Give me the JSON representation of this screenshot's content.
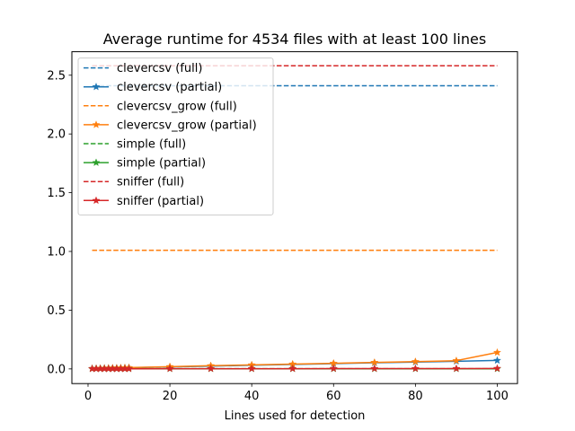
{
  "chart_data": {
    "type": "line",
    "title": "Average runtime for 4534 files with at least 100 lines",
    "xlabel": "Lines used for detection",
    "ylabel": "",
    "xlim": [
      -3.95,
      104.95
    ],
    "ylim": [
      -0.125,
      2.7
    ],
    "x_ticks": [
      0,
      20,
      40,
      60,
      80,
      100
    ],
    "y_ticks": [
      0.0,
      0.5,
      1.0,
      1.5,
      2.0,
      2.5
    ],
    "x_tick_labels": [
      "0",
      "20",
      "40",
      "60",
      "80",
      "100"
    ],
    "y_tick_labels": [
      "0.0",
      "0.5",
      "1.0",
      "1.5",
      "2.0",
      "2.5"
    ],
    "grid": false,
    "legend_position": "upper-left",
    "x": [
      1,
      2,
      3,
      4,
      5,
      6,
      7,
      8,
      9,
      10,
      20,
      30,
      40,
      50,
      60,
      70,
      80,
      90,
      100
    ],
    "series": [
      {
        "name": "clevercsv (full)",
        "color": "#1f77b4",
        "style": "dashed",
        "marker": "none",
        "values": [
          2.41,
          2.41,
          2.41,
          2.41,
          2.41,
          2.41,
          2.41,
          2.41,
          2.41,
          2.41,
          2.41,
          2.41,
          2.41,
          2.41,
          2.41,
          2.41,
          2.41,
          2.41,
          2.41
        ]
      },
      {
        "name": "clevercsv (partial)",
        "color": "#1f77b4",
        "style": "solid",
        "marker": "star",
        "values": [
          0.003,
          0.004,
          0.005,
          0.006,
          0.006,
          0.007,
          0.008,
          0.008,
          0.009,
          0.01,
          0.017,
          0.024,
          0.031,
          0.038,
          0.045,
          0.052,
          0.058,
          0.065,
          0.072
        ]
      },
      {
        "name": "clevercsv_grow (full)",
        "color": "#ff7f0e",
        "style": "dashed",
        "marker": "none",
        "values": [
          1.01,
          1.01,
          1.01,
          1.01,
          1.01,
          1.01,
          1.01,
          1.01,
          1.01,
          1.01,
          1.01,
          1.01,
          1.01,
          1.01,
          1.01,
          1.01,
          1.01,
          1.01,
          1.01
        ]
      },
      {
        "name": "clevercsv_grow (partial)",
        "color": "#ff7f0e",
        "style": "solid",
        "marker": "star",
        "values": [
          0.003,
          0.004,
          0.005,
          0.006,
          0.007,
          0.008,
          0.008,
          0.009,
          0.01,
          0.011,
          0.019,
          0.027,
          0.034,
          0.041,
          0.048,
          0.055,
          0.062,
          0.07,
          0.14
        ]
      },
      {
        "name": "simple (full)",
        "color": "#2ca02c",
        "style": "dashed",
        "marker": "none",
        "values": [
          0.002,
          0.002,
          0.002,
          0.002,
          0.002,
          0.002,
          0.002,
          0.002,
          0.002,
          0.002,
          0.002,
          0.002,
          0.002,
          0.002,
          0.002,
          0.002,
          0.002,
          0.002,
          0.002
        ]
      },
      {
        "name": "simple (partial)",
        "color": "#2ca02c",
        "style": "solid",
        "marker": "star",
        "values": [
          0.001,
          0.001,
          0.001,
          0.001,
          0.001,
          0.001,
          0.001,
          0.001,
          0.001,
          0.001,
          0.001,
          0.001,
          0.001,
          0.001,
          0.001,
          0.001,
          0.001,
          0.001,
          0.001
        ]
      },
      {
        "name": "sniffer (full)",
        "color": "#d62728",
        "style": "dashed",
        "marker": "none",
        "values": [
          2.58,
          2.58,
          2.58,
          2.58,
          2.58,
          2.58,
          2.58,
          2.58,
          2.58,
          2.58,
          2.58,
          2.58,
          2.58,
          2.58,
          2.58,
          2.58,
          2.58,
          2.58,
          2.58
        ]
      },
      {
        "name": "sniffer (partial)",
        "color": "#d62728",
        "style": "solid",
        "marker": "star",
        "values": [
          0.001,
          0.001,
          0.001,
          0.001,
          0.001,
          0.001,
          0.001,
          0.001,
          0.001,
          0.001,
          0.002,
          0.002,
          0.002,
          0.002,
          0.003,
          0.003,
          0.003,
          0.003,
          0.004
        ]
      }
    ]
  }
}
